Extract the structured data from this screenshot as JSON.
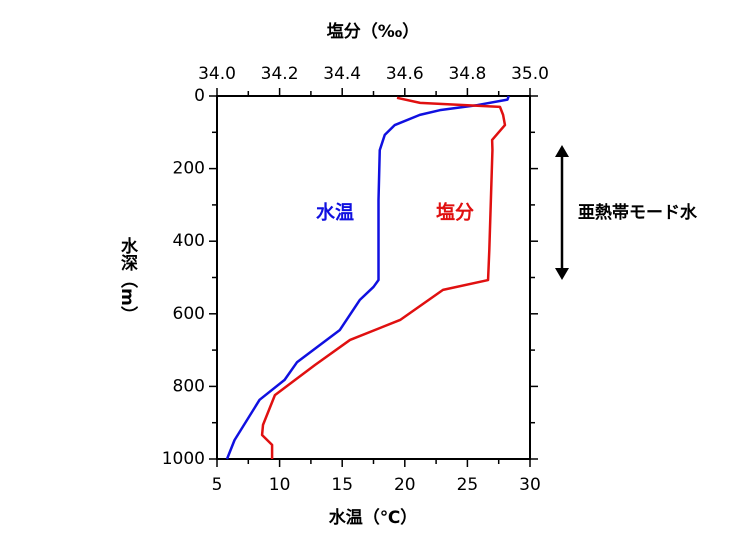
{
  "chart_data": {
    "type": "line",
    "title": "塩分（‰）",
    "xlabel": "水温（℃）",
    "ylabel": "水深（m）",
    "xlim": [
      5,
      30
    ],
    "xticks": [
      5,
      10,
      15,
      20,
      25,
      30
    ],
    "xminor": [
      7.5,
      12.5,
      17.5,
      22.5,
      27.5
    ],
    "x2lim": [
      34.0,
      35.0
    ],
    "x2ticks": [
      {
        "value": 34.0,
        "label": "34.0"
      },
      {
        "value": 34.2,
        "label": "34.2"
      },
      {
        "value": 34.4,
        "label": "34.4"
      },
      {
        "value": 34.6,
        "label": "34.6"
      },
      {
        "value": 34.8,
        "label": "34.8"
      },
      {
        "value": 35.0,
        "label": "35.0"
      }
    ],
    "x2minor": [
      34.1,
      34.3,
      34.5,
      34.7,
      34.9
    ],
    "ylim": [
      1000,
      0
    ],
    "yticks": [
      0,
      200,
      400,
      600,
      800,
      1000
    ],
    "yminor": [
      100,
      300,
      500,
      700,
      900
    ],
    "series": [
      {
        "name": "水温",
        "color": "#1010e0",
        "x": [
          28.3,
          28.2,
          25.8,
          22.8,
          21.2,
          19.2,
          18.4,
          18.0,
          17.9,
          17.9,
          17.5,
          16.4,
          14.8,
          11.4,
          10.4,
          8.4,
          6.4,
          5.8
        ],
        "y": [
          0,
          10,
          25,
          39,
          52,
          80,
          107,
          149,
          287,
          507,
          526,
          562,
          645,
          733,
          782,
          837,
          948,
          1000
        ]
      },
      {
        "name": "塩分",
        "color": "#e01010",
        "axis": "x2",
        "x": [
          34.575,
          34.649,
          34.904,
          34.914,
          34.92,
          34.879,
          34.88,
          34.87,
          34.866,
          34.722,
          34.585,
          34.425,
          34.313,
          34.185,
          34.147,
          34.144,
          34.176,
          34.176
        ],
        "y": [
          5,
          19,
          30,
          52,
          80,
          121,
          149,
          424,
          507,
          534,
          617,
          672,
          741,
          824,
          906,
          934,
          961,
          1000
        ]
      }
    ],
    "annotation": "亜熱帯モード水",
    "annotation_range": [
      135,
      507
    ]
  }
}
